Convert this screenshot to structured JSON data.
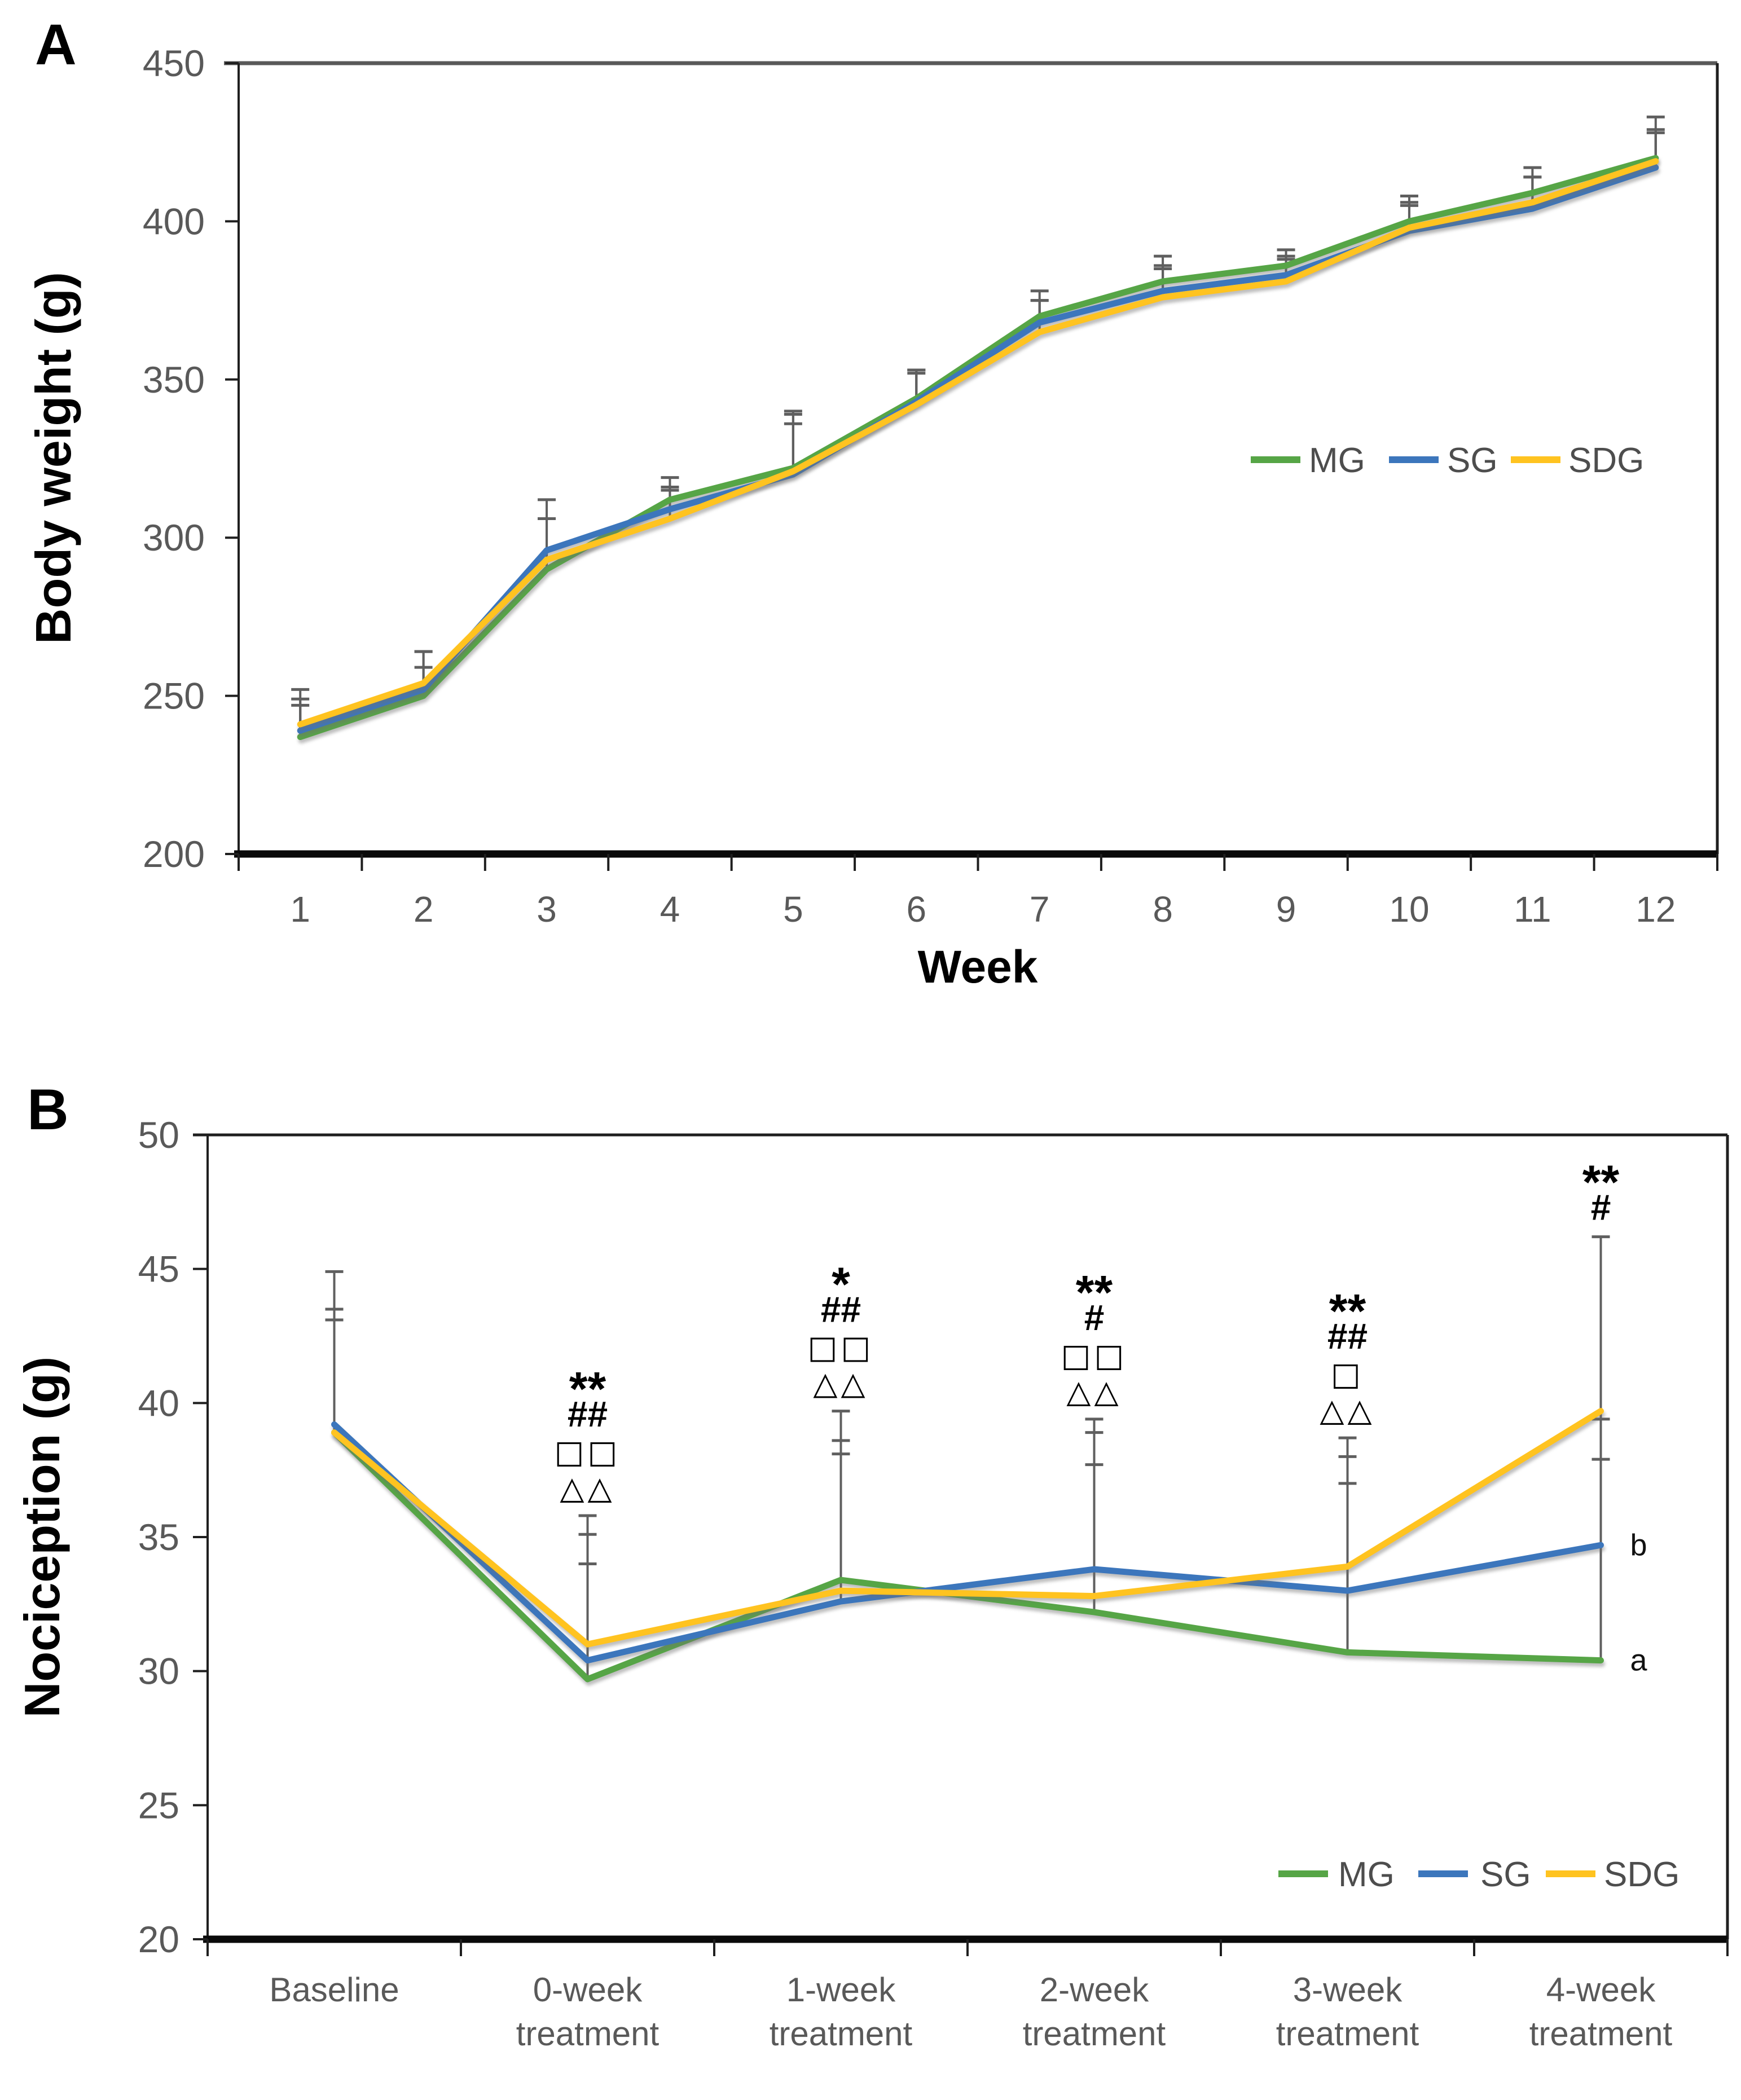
{
  "figure": {
    "panel_a_label": "A",
    "panel_b_label": "B"
  },
  "colors": {
    "mg_green": "#56A546",
    "sg_blue": "#3C76BC",
    "sdg_yellow": "#FFC320",
    "axis_dark": "#1f1f1f",
    "axis_bottom": "#0a0a0a",
    "top_border_a": "#595959",
    "tick_text_gray": "#595959",
    "legend_text": "#4d4d4d",
    "error_bar": "#5f5f5f",
    "annotation_black": "#000000"
  },
  "chart_data": [
    {
      "id": "A",
      "type": "line",
      "title": "",
      "xlabel": "Week",
      "ylabel": "Body weight (g)",
      "ylim": [
        200,
        450
      ],
      "ytick_labels": [
        450,
        400,
        350,
        300,
        250,
        200
      ],
      "grid": false,
      "legend_position": "middle-right",
      "categories": [
        "1",
        "2",
        "3",
        "4",
        "5",
        "6",
        "7",
        "8",
        "9",
        "10",
        "11",
        "12"
      ],
      "series": [
        {
          "name": "MG",
          "color": "#56A546",
          "values": [
            237,
            250,
            290,
            312,
            322,
            344,
            370,
            381,
            386,
            400,
            409,
            420
          ],
          "err_up": [
            10,
            9,
            16,
            7,
            14,
            8,
            8,
            8,
            5,
            8,
            8,
            13
          ]
        },
        {
          "name": "SG",
          "color": "#3C76BC",
          "values": [
            239,
            252,
            296,
            309,
            320,
            343,
            368,
            378,
            383,
            397,
            404,
            417
          ],
          "err_up": [
            13,
            12,
            16,
            6,
            20,
            10,
            7,
            7,
            5,
            8,
            10,
            11
          ]
        },
        {
          "name": "SDG",
          "color": "#FFC320",
          "values": [
            241,
            254,
            293,
            306,
            321,
            342,
            365,
            376,
            381,
            398,
            406,
            419
          ],
          "err_up": [
            8,
            10,
            13,
            10,
            18,
            11,
            10,
            10,
            8,
            8,
            8,
            10
          ]
        }
      ],
      "legend": [
        "MG",
        "SG",
        "SDG"
      ]
    },
    {
      "id": "B",
      "type": "line",
      "title": "",
      "xlabel": "",
      "ylabel": "Nociception (g)",
      "ylim": [
        20,
        50
      ],
      "ytick_labels": [
        50,
        45,
        40,
        35,
        30,
        25,
        20
      ],
      "grid": false,
      "legend_position": "bottom-right",
      "categories": [
        [
          "Baseline"
        ],
        [
          "0-week",
          "treatment"
        ],
        [
          "1-week",
          "treatment"
        ],
        [
          "2-week",
          "treatment"
        ],
        [
          "3-week",
          "treatment"
        ],
        [
          "4-week",
          "treatment"
        ]
      ],
      "series": [
        {
          "name": "MG",
          "color": "#56A546",
          "values": [
            38.9,
            29.7,
            33.4,
            32.2,
            30.7,
            30.4
          ],
          "err_up": [
            4.2,
            4.3,
            5.2,
            5.5,
            6.3,
            9.0
          ],
          "err_down": [
            0,
            0,
            0,
            0,
            0,
            0
          ]
        },
        {
          "name": "SG",
          "color": "#3C76BC",
          "values": [
            39.2,
            30.4,
            32.6,
            33.8,
            33.0,
            34.7
          ],
          "err_up": [
            5.7,
            4.7,
            5.5,
            5.6,
            5.0,
            3.2
          ],
          "err_down": [
            0,
            0,
            0,
            0,
            0,
            0
          ]
        },
        {
          "name": "SDG",
          "color": "#FFC320",
          "values": [
            38.9,
            31.0,
            33.0,
            32.8,
            33.9,
            39.7
          ],
          "err_up": [
            4.6,
            4.8,
            6.7,
            6.1,
            4.8,
            6.5
          ],
          "err_down": [
            0,
            0,
            0,
            0,
            0,
            9.3
          ]
        }
      ],
      "annotations": [
        {
          "category_index": 1,
          "lines": [
            "**",
            "##",
            "□□",
            "△△"
          ]
        },
        {
          "category_index": 2,
          "lines": [
            "*",
            "##",
            "□□",
            "△△"
          ]
        },
        {
          "category_index": 3,
          "lines": [
            "**",
            "#",
            "□□",
            "△△"
          ]
        },
        {
          "category_index": 4,
          "lines": [
            "**",
            "##",
            "□",
            "△△"
          ]
        },
        {
          "category_index": 5,
          "lines": [
            "**",
            "#"
          ]
        }
      ],
      "point_labels": [
        {
          "category_index": 5,
          "series": "SG",
          "text": "b"
        },
        {
          "category_index": 5,
          "series": "MG",
          "text": "a"
        }
      ],
      "legend": [
        "MG",
        "SG",
        "SDG"
      ]
    }
  ]
}
